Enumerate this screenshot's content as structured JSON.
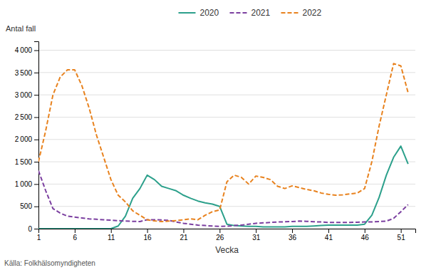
{
  "chart_data": {
    "type": "line",
    "xlabel": "Vecka",
    "ylabel": "Antal fall",
    "source": "Källa: Folkhälsomyndigheten",
    "x": [
      1,
      2,
      3,
      4,
      5,
      6,
      7,
      8,
      9,
      10,
      11,
      12,
      13,
      14,
      15,
      16,
      17,
      18,
      19,
      20,
      21,
      22,
      23,
      24,
      25,
      26,
      27,
      28,
      29,
      30,
      31,
      32,
      33,
      34,
      35,
      36,
      37,
      38,
      39,
      40,
      41,
      42,
      43,
      44,
      45,
      46,
      47,
      48,
      49,
      50,
      51,
      52
    ],
    "series": [
      {
        "name": "2020",
        "color": "#2ca08b",
        "line_style": "solid",
        "values": [
          0,
          0,
          0,
          0,
          0,
          0,
          0,
          0,
          0,
          0,
          0,
          60,
          280,
          680,
          900,
          1200,
          1100,
          950,
          900,
          850,
          750,
          680,
          620,
          580,
          550,
          500,
          100,
          70,
          60,
          50,
          50,
          40,
          40,
          40,
          40,
          50,
          50,
          50,
          60,
          70,
          80,
          80,
          80,
          80,
          80,
          100,
          300,
          700,
          1200,
          1600,
          1850,
          1450
        ]
      },
      {
        "name": "2021",
        "color": "#7b3fa0",
        "line_style": "dashed",
        "values": [
          1300,
          850,
          450,
          350,
          280,
          260,
          240,
          220,
          210,
          200,
          190,
          180,
          170,
          165,
          160,
          200,
          200,
          195,
          185,
          150,
          120,
          100,
          80,
          70,
          60,
          50,
          55,
          70,
          80,
          100,
          120,
          130,
          140,
          150,
          155,
          160,
          170,
          165,
          155,
          150,
          140,
          140,
          140,
          140,
          145,
          150,
          150,
          160,
          170,
          230,
          380,
          540
        ]
      },
      {
        "name": "2022",
        "color": "#e8821e",
        "line_style": "dashed",
        "values": [
          1500,
          2200,
          3000,
          3400,
          3560,
          3560,
          3200,
          2700,
          2100,
          1600,
          1100,
          750,
          600,
          400,
          300,
          200,
          175,
          160,
          170,
          180,
          200,
          220,
          200,
          300,
          380,
          420,
          1050,
          1200,
          1150,
          1000,
          1180,
          1150,
          1100,
          950,
          900,
          960,
          920,
          880,
          850,
          800,
          770,
          750,
          760,
          780,
          800,
          900,
          1500,
          2300,
          3000,
          3700,
          3650,
          3050
        ]
      }
    ],
    "xlim": [
      1,
      53
    ],
    "xticks": [
      1,
      6,
      11,
      16,
      21,
      26,
      31,
      36,
      41,
      46,
      51
    ],
    "ylim": [
      0,
      4200
    ],
    "yticks": [
      0,
      500,
      {
        "value": 1000,
        "label": "1 000"
      },
      {
        "value": 1500,
        "label": "1 500"
      },
      {
        "value": 2000,
        "label": "2 000"
      },
      {
        "value": 2500,
        "label": "2 500"
      },
      {
        "value": 3000,
        "label": "3 000"
      },
      {
        "value": 3500,
        "label": "3 500"
      },
      {
        "value": 4000,
        "label": "4 000"
      }
    ],
    "grid": "y",
    "legend": "top"
  }
}
